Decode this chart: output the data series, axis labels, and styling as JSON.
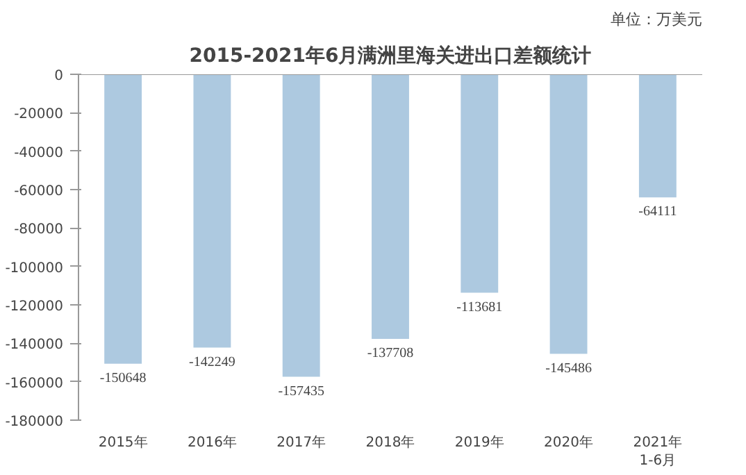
{
  "chart_data": {
    "type": "bar",
    "title": "2015-2021年6月满洲里海关进出口差额统计",
    "annotations": [
      "单位：万美元"
    ],
    "categories": [
      "2015年",
      "2016年",
      "2017年",
      "2018年",
      "2019年",
      "2020年",
      "2021年\n1-6月"
    ],
    "values": [
      -150648,
      -142249,
      -157435,
      -137708,
      -113681,
      -145486,
      -64111
    ],
    "color": "#adc9e0",
    "ylim": [
      -180000,
      0
    ],
    "yticks": [
      -180000,
      -160000,
      -140000,
      -120000,
      -100000,
      -80000,
      -60000,
      -40000,
      -20000,
      0
    ],
    "data_labels": true,
    "grid": false
  }
}
